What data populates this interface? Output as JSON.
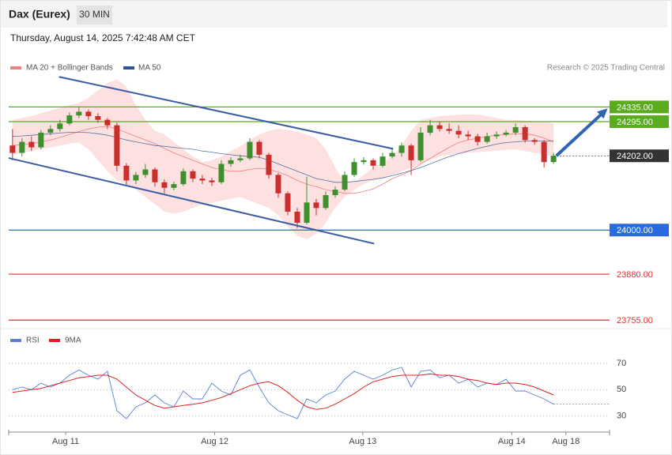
{
  "header": {
    "title": "Dax (Eurex)",
    "timeframe": "30 MIN",
    "timestamp": "Thursday, August 14, 2025 7:42:48 AM CET"
  },
  "chart_data": [
    {
      "type": "candlestick",
      "source": "Research © 2025 Trading Central",
      "xlim": [
        -0.4,
        62.9
      ],
      "ylim": [
        23734,
        24497
      ],
      "up_color": "#3f8f2f",
      "down_color": "#cc2e2e",
      "open": [
        24230,
        24210,
        24240,
        24225,
        24265,
        24275,
        24290,
        24312,
        24322,
        24310,
        24300,
        24285,
        24175,
        24135,
        24150,
        24165,
        24130,
        24115,
        24125,
        24160,
        24140,
        24135,
        24130,
        24180,
        24190,
        24195,
        24240,
        24205,
        24150,
        24100,
        24050,
        24020,
        24075,
        24060,
        24095,
        24110,
        24150,
        24185,
        24190,
        24175,
        24200,
        24210,
        24230,
        24190,
        24265,
        24285,
        24275,
        24270,
        24260,
        24255,
        24240,
        24255,
        24260,
        24265,
        24280,
        24245,
        24240,
        24185
      ],
      "high": [
        24275,
        24250,
        24255,
        24272,
        24285,
        24300,
        24320,
        24335,
        24328,
        24318,
        24305,
        24292,
        24182,
        24158,
        24180,
        24170,
        24138,
        24132,
        24168,
        24165,
        24150,
        24142,
        24190,
        24198,
        24205,
        24250,
        24245,
        24210,
        24155,
        24105,
        24060,
        24145,
        24085,
        24105,
        24118,
        24160,
        24195,
        24198,
        24195,
        24210,
        24220,
        24238,
        24235,
        24280,
        24300,
        24295,
        24290,
        24285,
        24270,
        24262,
        24265,
        24268,
        24272,
        24290,
        24285,
        24250,
        24245,
        24210
      ],
      "low": [
        24190,
        24200,
        24215,
        24220,
        24258,
        24268,
        24285,
        24305,
        24300,
        24292,
        24275,
        24160,
        24120,
        24125,
        24142,
        24118,
        24100,
        24108,
        24120,
        24130,
        24125,
        24120,
        24125,
        24172,
        24185,
        24190,
        24195,
        24140,
        24088,
        24040,
        24005,
        24015,
        24040,
        24055,
        24088,
        24105,
        24145,
        24178,
        24165,
        24170,
        24195,
        24200,
        24150,
        24185,
        24258,
        24268,
        24262,
        24250,
        24245,
        24230,
        24235,
        24248,
        24255,
        24258,
        24238,
        24232,
        24170,
        24180
      ],
      "close": [
        24210,
        24240,
        24225,
        24265,
        24275,
        24290,
        24312,
        24322,
        24310,
        24300,
        24285,
        24175,
        24135,
        24150,
        24165,
        24130,
        24115,
        24125,
        24160,
        24140,
        24135,
        24130,
        24180,
        24190,
        24195,
        24240,
        24205,
        24150,
        24100,
        24050,
        24020,
        24075,
        24060,
        24095,
        24110,
        24150,
        24185,
        24190,
        24175,
        24200,
        24210,
        24230,
        24190,
        24265,
        24285,
        24275,
        24270,
        24260,
        24255,
        24240,
        24255,
        24260,
        24265,
        24280,
        24245,
        24240,
        24185,
        24202
      ],
      "series": [
        {
          "name": "MA 20 + Bollinger Bands",
          "color": "#f08080",
          "band_color": "#fde0e0",
          "values": [
            24230,
            24232,
            24235,
            24240,
            24245,
            24252,
            24260,
            24268,
            24275,
            24280,
            24282,
            24275,
            24265,
            24255,
            24245,
            24235,
            24222,
            24210,
            24200,
            24190,
            24180,
            24170,
            24165,
            24160,
            24160,
            24165,
            24168,
            24165,
            24158,
            24148,
            24135,
            24125,
            24118,
            24110,
            24105,
            24100,
            24100,
            24105,
            24112,
            24125,
            24140,
            24150,
            24162,
            24180,
            24195,
            24210,
            24225,
            24238,
            24245,
            24250,
            24255,
            24258,
            24260,
            24262,
            24262,
            24258,
            24250,
            24240
          ],
          "upper": [
            24300,
            24305,
            24310,
            24318,
            24325,
            24332,
            24340,
            24346,
            24360,
            24380,
            24400,
            24410,
            24390,
            24340,
            24300,
            24270,
            24260,
            24240,
            24220,
            24200,
            24185,
            24190,
            24200,
            24215,
            24228,
            24245,
            24260,
            24270,
            24275,
            24272,
            24268,
            24260,
            24250,
            24220,
            24170,
            24130,
            24130,
            24150,
            24170,
            24185,
            24200,
            24230,
            24270,
            24300,
            24305,
            24310,
            24312,
            24314,
            24314,
            24314,
            24310,
            24305,
            24300,
            24300,
            24298,
            24296,
            24295,
            24290
          ],
          "lower": [
            24205,
            24210,
            24215,
            24220,
            24225,
            24230,
            24235,
            24238,
            24220,
            24190,
            24160,
            24135,
            24125,
            24110,
            24090,
            24070,
            24050,
            24045,
            24050,
            24060,
            24070,
            24075,
            24080,
            24085,
            24090,
            24080,
            24070,
            24060,
            24040,
            24010,
            23985,
            23975,
            23990,
            24020,
            24060,
            24090,
            24110,
            24125,
            24135,
            24140,
            24150,
            24160,
            24170,
            24180,
            24190,
            24200,
            24205,
            24208,
            24210,
            24212,
            24214,
            24216,
            24218,
            24220,
            24215,
            24210,
            24205,
            24200
          ]
        },
        {
          "name": "MA 50",
          "color": "#2d5596",
          "values": [
            24255,
            24256,
            24258,
            24260,
            24262,
            24264,
            24266,
            24266,
            24265,
            24262,
            24258,
            24252,
            24245,
            24240,
            24235,
            24230,
            24228,
            24225,
            24222,
            24220,
            24215,
            24212,
            24208,
            24205,
            24202,
            24200,
            24198,
            24190,
            24180,
            24170,
            24160,
            24150,
            24140,
            24135,
            24130,
            24130,
            24132,
            24135,
            24138,
            24142,
            24148,
            24155,
            24162,
            24170,
            24180,
            24190,
            24200,
            24208,
            24215,
            24222,
            24228,
            24234,
            24238,
            24240,
            24242,
            24242,
            24242,
            24242
          ]
        }
      ],
      "trendlines": [
        {
          "color": "#3b5ba5",
          "x": [
            4.9,
            40.1
          ],
          "y": [
            24417,
            24221
          ]
        },
        {
          "color": "#3b5ba5",
          "x": [
            -0.4,
            38.1
          ],
          "y": [
            24196,
            23963
          ]
        }
      ],
      "arrow": {
        "color": "#2f63b5",
        "x": [
          57.3,
          62.7
        ],
        "y": [
          24202,
          24331
        ]
      },
      "levels": [
        {
          "value": 24335,
          "label": "24335.00",
          "color": "#5aab1e",
          "style": "solid",
          "boxed": true
        },
        {
          "value": 24295,
          "label": "24295.00",
          "color": "#5aab1e",
          "style": "solid",
          "boxed": true
        },
        {
          "value": 24202,
          "label": "24202.00",
          "color": "#333333",
          "style": "dotted",
          "boxed": true
        },
        {
          "value": 24000,
          "label": "24000.00",
          "color": "#2a6ae0",
          "style": "solid",
          "boxed": true
        },
        {
          "value": 23880,
          "label": "23880.00",
          "color": "#e03030",
          "style": "solid",
          "boxed": false
        },
        {
          "value": 23755,
          "label": "23755.00",
          "color": "#e03030",
          "style": "solid",
          "boxed": false
        }
      ]
    },
    {
      "type": "line",
      "xlim": [
        -0.4,
        62.9
      ],
      "ylim": [
        19,
        82
      ],
      "yticks": [
        70,
        50,
        30
      ],
      "xticks": [
        {
          "value": 5.6,
          "label": "Aug 11"
        },
        {
          "value": 21.3,
          "label": "Aug 12"
        },
        {
          "value": 36.9,
          "label": "Aug 13"
        },
        {
          "value": 52.6,
          "label": "Aug 14"
        },
        {
          "value": 58.3,
          "label": "Aug 18"
        }
      ],
      "series": [
        {
          "name": "RSI",
          "color": "#5b7fd6",
          "values": [
            50,
            52,
            50,
            55,
            52,
            55,
            61,
            65,
            61,
            58,
            64,
            34,
            28,
            37,
            40,
            46,
            40,
            37,
            49,
            43,
            43,
            55,
            49,
            46,
            61,
            65,
            52,
            40,
            34,
            31,
            28,
            43,
            40,
            46,
            49,
            58,
            64,
            61,
            58,
            61,
            65,
            67,
            52,
            64,
            65,
            59,
            61,
            55,
            58,
            52,
            55,
            54,
            58,
            49,
            49,
            46,
            43,
            39
          ]
        },
        {
          "name": "9MA",
          "color": "#e02020",
          "values": [
            48,
            49,
            50,
            51,
            53,
            55,
            57,
            59,
            60,
            61,
            61,
            58,
            52,
            46,
            42,
            38,
            36,
            37,
            38,
            39,
            40,
            42,
            44,
            47,
            50,
            53,
            55,
            56,
            53,
            48,
            42,
            37,
            35,
            36,
            39,
            43,
            47,
            52,
            56,
            58,
            60,
            61,
            61,
            61,
            62,
            61,
            61,
            60,
            58,
            57,
            55,
            54,
            55,
            55,
            54,
            52,
            49,
            46
          ]
        }
      ]
    }
  ]
}
